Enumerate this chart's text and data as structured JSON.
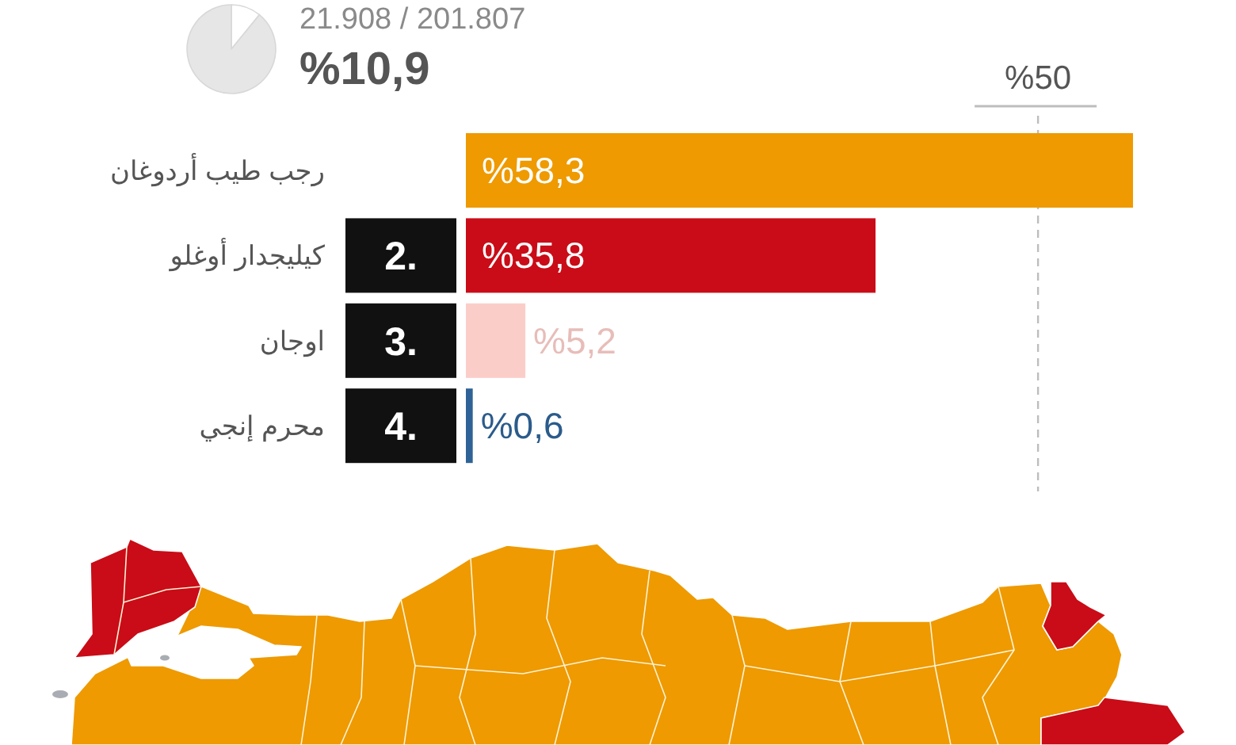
{
  "chart_data": [
    {
      "type": "pie",
      "categories": [
        null,
        null
      ],
      "values": [
        10.9,
        89.1
      ],
      "colors": [
        "#ffffff",
        "#e6e6e6"
      ],
      "annotations": [
        "21.908 / 201.807",
        "%10,9"
      ]
    },
    {
      "type": "bar",
      "orientation": "horizontal",
      "categories": [
        "رجب طيب أردوغان",
        "كيليجدار أوغلو",
        "اوجان",
        "محرم إنجي"
      ],
      "values": [
        58.3,
        35.8,
        5.2,
        0.6
      ],
      "colors": [
        "#ee9a00",
        "#c90c17",
        "#fbcdc9",
        "#2f6397"
      ],
      "value_labels": [
        "%58,3",
        "%35,8",
        "%5,2",
        "%0,6"
      ],
      "tick_labels": "y",
      "ref_lines": [
        {
          "axis": "x",
          "value": 50,
          "label": "%50",
          "color": "#bdbdbd",
          "line_style": "dashed"
        }
      ],
      "annotations": [
        "2.",
        "3.",
        "4."
      ]
    }
  ]
}
